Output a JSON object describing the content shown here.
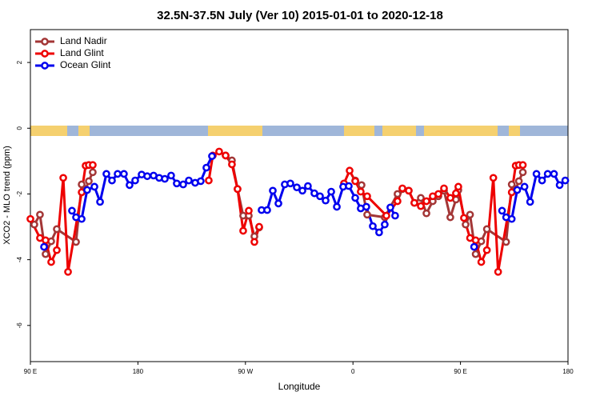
{
  "chart_data": {
    "type": "line",
    "title": "32.5N-37.5N July (Ver 10)   2015-01-01 to 2020-12-18",
    "x_label": "Longitude",
    "y_label": "XCO2 - MLO trend (ppm)",
    "xlim": [
      90,
      540
    ],
    "ylim": [
      -7.1,
      3
    ],
    "xticks": [
      {
        "value": 90,
        "label": "90 E"
      },
      180,
      {
        "value": 270,
        "label": "90 W"
      },
      {
        "value": 360,
        "label": "0"
      },
      {
        "value": 450,
        "label": "90 E"
      },
      {
        "value": 540,
        "label": "180"
      }
    ],
    "yticks": [
      -6,
      -4,
      -2,
      0,
      2
    ],
    "legend": "top-left",
    "series": [
      {
        "name": "Land Nadir",
        "color": "#a33636",
        "x": [
          93.3,
          98.0,
          102.7,
          107.4,
          112.1,
          128.2,
          132.9,
          136.2,
          138.9,
          142.2,
          null,
          253.4,
          258.7,
          263.4,
          268.1,
          272.8,
          277.5,
          281.5,
          null,
          361.9,
          367.2,
          371.9,
          386.6,
          397.3,
          401.4,
          406.7,
          411.4,
          416.8,
          421.5,
          426.8,
          431.5,
          436.2,
          441.5,
          446.2,
          448.2,
          454.3,
          458.0,
          462.7,
          467.4,
          472.1,
          488.2,
          492.9,
          496.2,
          498.9,
          502.2
        ],
        "values": [
          -2.93,
          -2.63,
          -3.83,
          -3.44,
          -3.07,
          -3.46,
          -1.71,
          -1.85,
          -1.61,
          -1.34,
          null,
          -0.83,
          -0.98,
          -1.85,
          -2.66,
          -2.66,
          -3.29,
          -3.02,
          null,
          -1.59,
          -1.73,
          -2.63,
          -2.71,
          -2.0,
          -1.85,
          -1.9,
          -2.27,
          -2.12,
          -2.59,
          -2.22,
          -2.07,
          -1.9,
          -2.71,
          -2.17,
          -1.88,
          -2.93,
          -2.63,
          -3.83,
          -3.44,
          -3.07,
          -3.46,
          -1.71,
          -1.85,
          -1.61,
          -1.34
        ]
      },
      {
        "name": "Land Glint",
        "color": "#ee0000",
        "x": [
          90,
          98.0,
          102.7,
          107.4,
          112.1,
          117.5,
          121.5,
          132.9,
          136.2,
          138.9,
          142.2,
          null,
          239.3,
          242.7,
          248.0,
          253.4,
          258.7,
          263.4,
          268.1,
          272.8,
          277.5,
          281.5,
          null,
          352.5,
          357.2,
          361.9,
          366.5,
          371.9,
          388.0,
          397.3,
          401.4,
          406.7,
          411.4,
          416.8,
          421.5,
          426.8,
          431.5,
          436.2,
          441.5,
          446.2,
          448.2,
          452.9,
          458.0,
          462.7,
          467.4,
          472.1,
          477.5,
          481.5,
          492.9,
          496.2,
          498.9,
          502.2
        ],
        "values": [
          -2.76,
          -3.34,
          -3.41,
          -4.07,
          -3.71,
          -1.51,
          -4.37,
          -1.95,
          -1.14,
          -1.12,
          -1.12,
          null,
          -1.59,
          -0.83,
          -0.71,
          -0.83,
          -1.1,
          -1.85,
          -3.12,
          -2.51,
          -3.46,
          -3.0,
          null,
          -1.68,
          -1.29,
          -1.61,
          -1.93,
          -2.07,
          -2.66,
          -2.22,
          -1.83,
          -1.9,
          -2.27,
          -2.37,
          -2.22,
          -2.07,
          -2.0,
          -1.83,
          -2.12,
          -1.98,
          -1.78,
          -2.73,
          -3.34,
          -3.41,
          -4.07,
          -3.71,
          -1.51,
          -4.37,
          -1.95,
          -1.14,
          -1.12,
          -1.12
        ]
      },
      {
        "name": "Ocean Glint",
        "color": "#0000ee",
        "x": [
          101.4,
          null,
          124.8,
          128.2,
          132.9,
          137.5,
          143.6,
          148.3,
          153.6,
          158.3,
          163.0,
          168.3,
          173.0,
          177.7,
          183.1,
          187.8,
          193.1,
          197.8,
          202.5,
          207.8,
          212.5,
          217.9,
          222.6,
          227.9,
          232.6,
          237.3,
          242.0,
          null,
          283.5,
          288.2,
          292.9,
          297.6,
          302.9,
          307.6,
          313.0,
          317.7,
          322.3,
          327.7,
          332.4,
          337.1,
          341.8,
          346.5,
          351.8,
          356.5,
          361.9,
          366.5,
          371.2,
          376.6,
          381.9,
          386.6,
          391.3,
          395.3,
          null,
          461.4,
          null,
          484.8,
          488.2,
          492.9,
          497.5,
          503.6,
          508.3,
          513.6,
          518.3,
          523.0,
          528.3,
          533.0,
          537.7
        ],
        "values": [
          -3.61,
          null,
          -2.51,
          -2.71,
          -2.76,
          -1.88,
          -1.78,
          -2.24,
          -1.39,
          -1.59,
          -1.39,
          -1.39,
          -1.73,
          -1.59,
          -1.41,
          -1.46,
          -1.44,
          -1.51,
          -1.54,
          -1.44,
          -1.68,
          -1.71,
          -1.59,
          -1.66,
          -1.61,
          -1.2,
          -0.85,
          null,
          -2.49,
          -2.49,
          -1.9,
          -2.29,
          -1.71,
          -1.68,
          -1.8,
          -1.9,
          -1.76,
          -1.98,
          -2.07,
          -2.2,
          -1.93,
          -2.39,
          -1.78,
          -1.76,
          -2.12,
          -2.44,
          -2.39,
          -2.98,
          -3.17,
          -2.93,
          -2.41,
          -2.66,
          null,
          -3.61,
          null,
          -2.51,
          -2.71,
          -2.76,
          -1.88,
          -1.78,
          -2.24,
          -1.39,
          -1.59,
          -1.39,
          -1.39,
          -1.73,
          -1.59
        ]
      }
    ]
  }
}
